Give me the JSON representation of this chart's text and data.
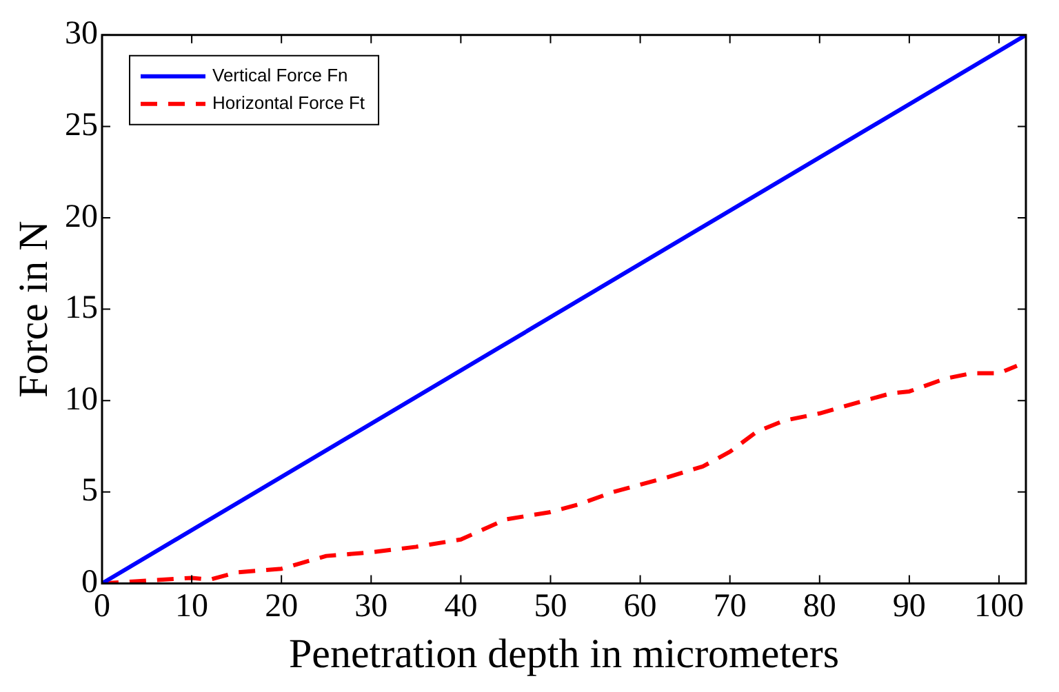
{
  "chart_data": {
    "type": "line",
    "xlabel": "Penetration depth in micrometers",
    "ylabel": "Force in N",
    "xlim": [
      0,
      103
    ],
    "xticks": [
      0,
      10,
      20,
      30,
      40,
      50,
      60,
      70,
      80,
      90,
      100
    ],
    "ylim": [
      0,
      30
    ],
    "yticks": [
      0,
      5,
      10,
      15,
      20,
      25,
      30
    ],
    "grid": false,
    "legend": "top left",
    "marker": "none",
    "series": [
      {
        "name": "Vertical Force Fn",
        "color": "#0000ff",
        "line_style": "solid",
        "x": [
          0,
          103
        ],
        "values": [
          0,
          30
        ]
      },
      {
        "name": "Horizontal Force Ft",
        "color": "#ff0000",
        "line_style": "dashed",
        "x": [
          0,
          10,
          12,
          15,
          20,
          25,
          30,
          35,
          40,
          45,
          50,
          53,
          57,
          60,
          63,
          67,
          70,
          73,
          76,
          80,
          85,
          88,
          90,
          94,
          97,
          100,
          102
        ],
        "values": [
          0,
          0.3,
          0.2,
          0.6,
          0.8,
          1.5,
          1.7,
          2.0,
          2.4,
          3.5,
          3.9,
          4.3,
          5.0,
          5.4,
          5.8,
          6.4,
          7.2,
          8.3,
          8.9,
          9.3,
          10.0,
          10.4,
          10.5,
          11.2,
          11.5,
          11.5,
          11.9
        ]
      }
    ]
  }
}
